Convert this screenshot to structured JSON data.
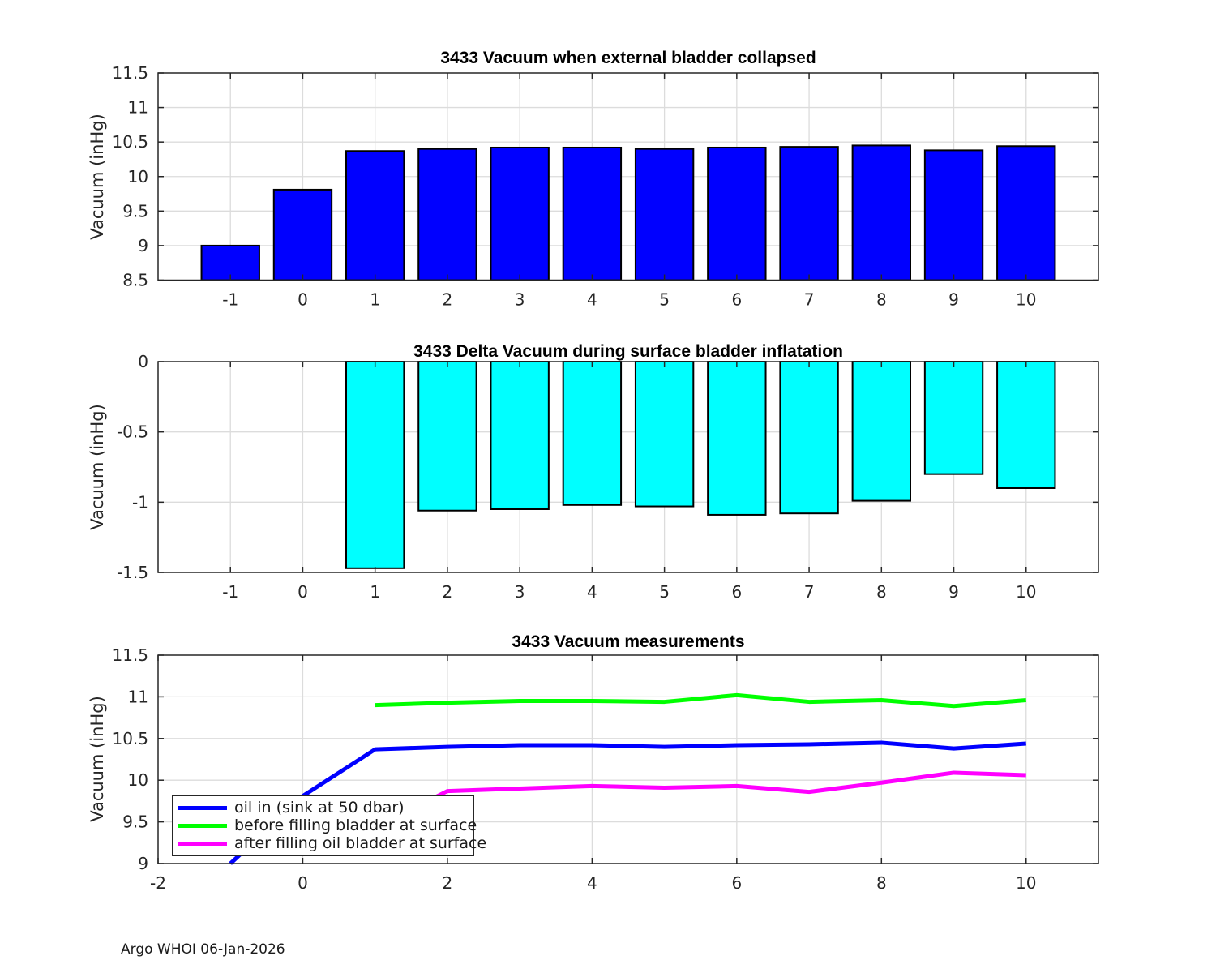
{
  "page": {
    "footer": "Argo WHOI 06-Jan-2026",
    "background": "#ffffff"
  },
  "chart_data": [
    {
      "type": "bar",
      "title": "3433 Vacuum when external bladder collapsed",
      "ylabel": "Vacuum (inHg)",
      "categories": [
        -1,
        0,
        1,
        2,
        3,
        4,
        5,
        6,
        7,
        8,
        9,
        10
      ],
      "values": [
        9.0,
        9.81,
        10.37,
        10.4,
        10.42,
        10.42,
        10.4,
        10.42,
        10.43,
        10.45,
        10.38,
        10.44
      ],
      "bar_color": "#0000FF",
      "bar_edge_color": "#000000",
      "xlim": [
        -2,
        11
      ],
      "ylim": [
        8.5,
        11.5
      ],
      "yticks": [
        8.5,
        9,
        9.5,
        10,
        10.5,
        11,
        11.5
      ],
      "grid": true,
      "legend_position": "none"
    },
    {
      "type": "bar",
      "title": "3433 Delta Vacuum during surface bladder inflatation",
      "ylabel": "Vacuum (inHg)",
      "categories": [
        -1,
        0,
        1,
        2,
        3,
        4,
        5,
        6,
        7,
        8,
        9,
        10
      ],
      "values": [
        null,
        null,
        -1.47,
        -1.06,
        -1.05,
        -1.02,
        -1.03,
        -1.09,
        -1.08,
        -0.99,
        -0.8,
        -0.9
      ],
      "bar_color": "#00FFFF",
      "bar_edge_color": "#000000",
      "xlim": [
        -2,
        11
      ],
      "ylim": [
        -1.5,
        0
      ],
      "yticks": [
        0,
        -0.5,
        -1,
        -1.5
      ],
      "grid": true,
      "legend_position": "none"
    },
    {
      "type": "line",
      "title": "3433 Vacuum measurements",
      "ylabel": "Vacuum (inHg)",
      "xlim": [
        -2,
        11
      ],
      "ylim": [
        9,
        11.5
      ],
      "xticks": [
        -2,
        0,
        2,
        4,
        6,
        8,
        10
      ],
      "yticks": [
        9,
        9.5,
        10,
        10.5,
        11,
        11.5
      ],
      "grid": true,
      "legend_position": "bottom-left",
      "series": [
        {
          "name": "oil in (sink at 50 dbar)",
          "color": "#0000FF",
          "x": [
            -1,
            0,
            1,
            2,
            3,
            4,
            5,
            6,
            7,
            8,
            9,
            10
          ],
          "y": [
            9.0,
            9.81,
            10.37,
            10.4,
            10.42,
            10.42,
            10.4,
            10.42,
            10.43,
            10.45,
            10.38,
            10.44
          ]
        },
        {
          "name": "before filling bladder at surface",
          "color": "#00FF00",
          "x": [
            1,
            2,
            3,
            4,
            5,
            6,
            7,
            8,
            9,
            10
          ],
          "y": [
            10.9,
            10.93,
            10.95,
            10.95,
            10.94,
            11.02,
            10.94,
            10.96,
            10.89,
            10.96
          ]
        },
        {
          "name": "after filling oil bladder at surface",
          "color": "#FF00FF",
          "x": [
            1,
            2,
            3,
            4,
            5,
            6,
            7,
            8,
            9,
            10
          ],
          "y": [
            9.43,
            9.87,
            9.9,
            9.93,
            9.91,
            9.93,
            9.86,
            9.97,
            10.09,
            10.06
          ]
        }
      ]
    }
  ]
}
